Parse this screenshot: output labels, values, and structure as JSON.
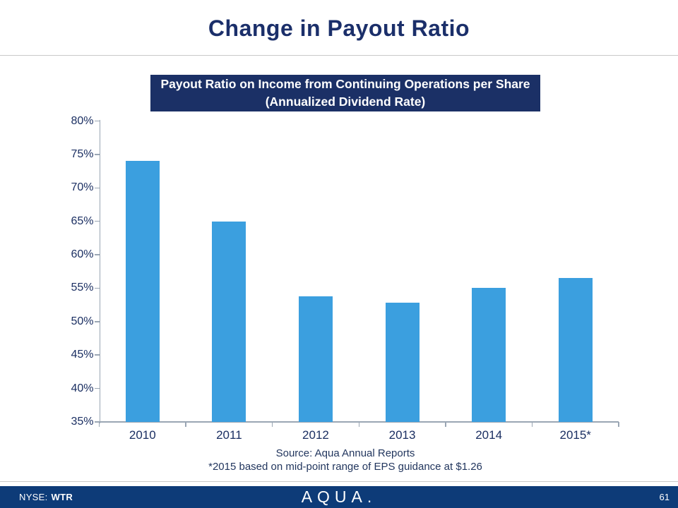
{
  "slide": {
    "title": "Change in Payout Ratio",
    "page_number": "61",
    "footer": {
      "ticker_label": "NYSE:",
      "ticker": "WTR",
      "logo": "AQUA."
    }
  },
  "chart_data": {
    "type": "bar",
    "title_line1": "Payout Ratio on Income from Continuing Operations per Share",
    "title_line2": "(Annualized Dividend Rate)",
    "categories": [
      "2010",
      "2011",
      "2012",
      "2013",
      "2014",
      "2015*"
    ],
    "values": [
      74,
      65,
      53.8,
      52.8,
      55,
      56.5
    ],
    "y_tick_labels": [
      "80%",
      "75%",
      "70%",
      "65%",
      "60%",
      "55%",
      "50%",
      "45%",
      "40%",
      "35%"
    ],
    "ylim": [
      35,
      80
    ],
    "grid": "off",
    "legend": "none",
    "bar_color": "#3b9fdf",
    "source_line1": "Source: Aqua Annual Reports",
    "source_line2": "*2015 based on mid-point range of EPS guidance at $1.26"
  },
  "colors": {
    "title_text": "#1b2f6a",
    "chart_title_bg": "#1b3066",
    "footer_bg": "#0d3b78",
    "axis": "#9aa6b4",
    "bar": "#3b9fdf"
  }
}
